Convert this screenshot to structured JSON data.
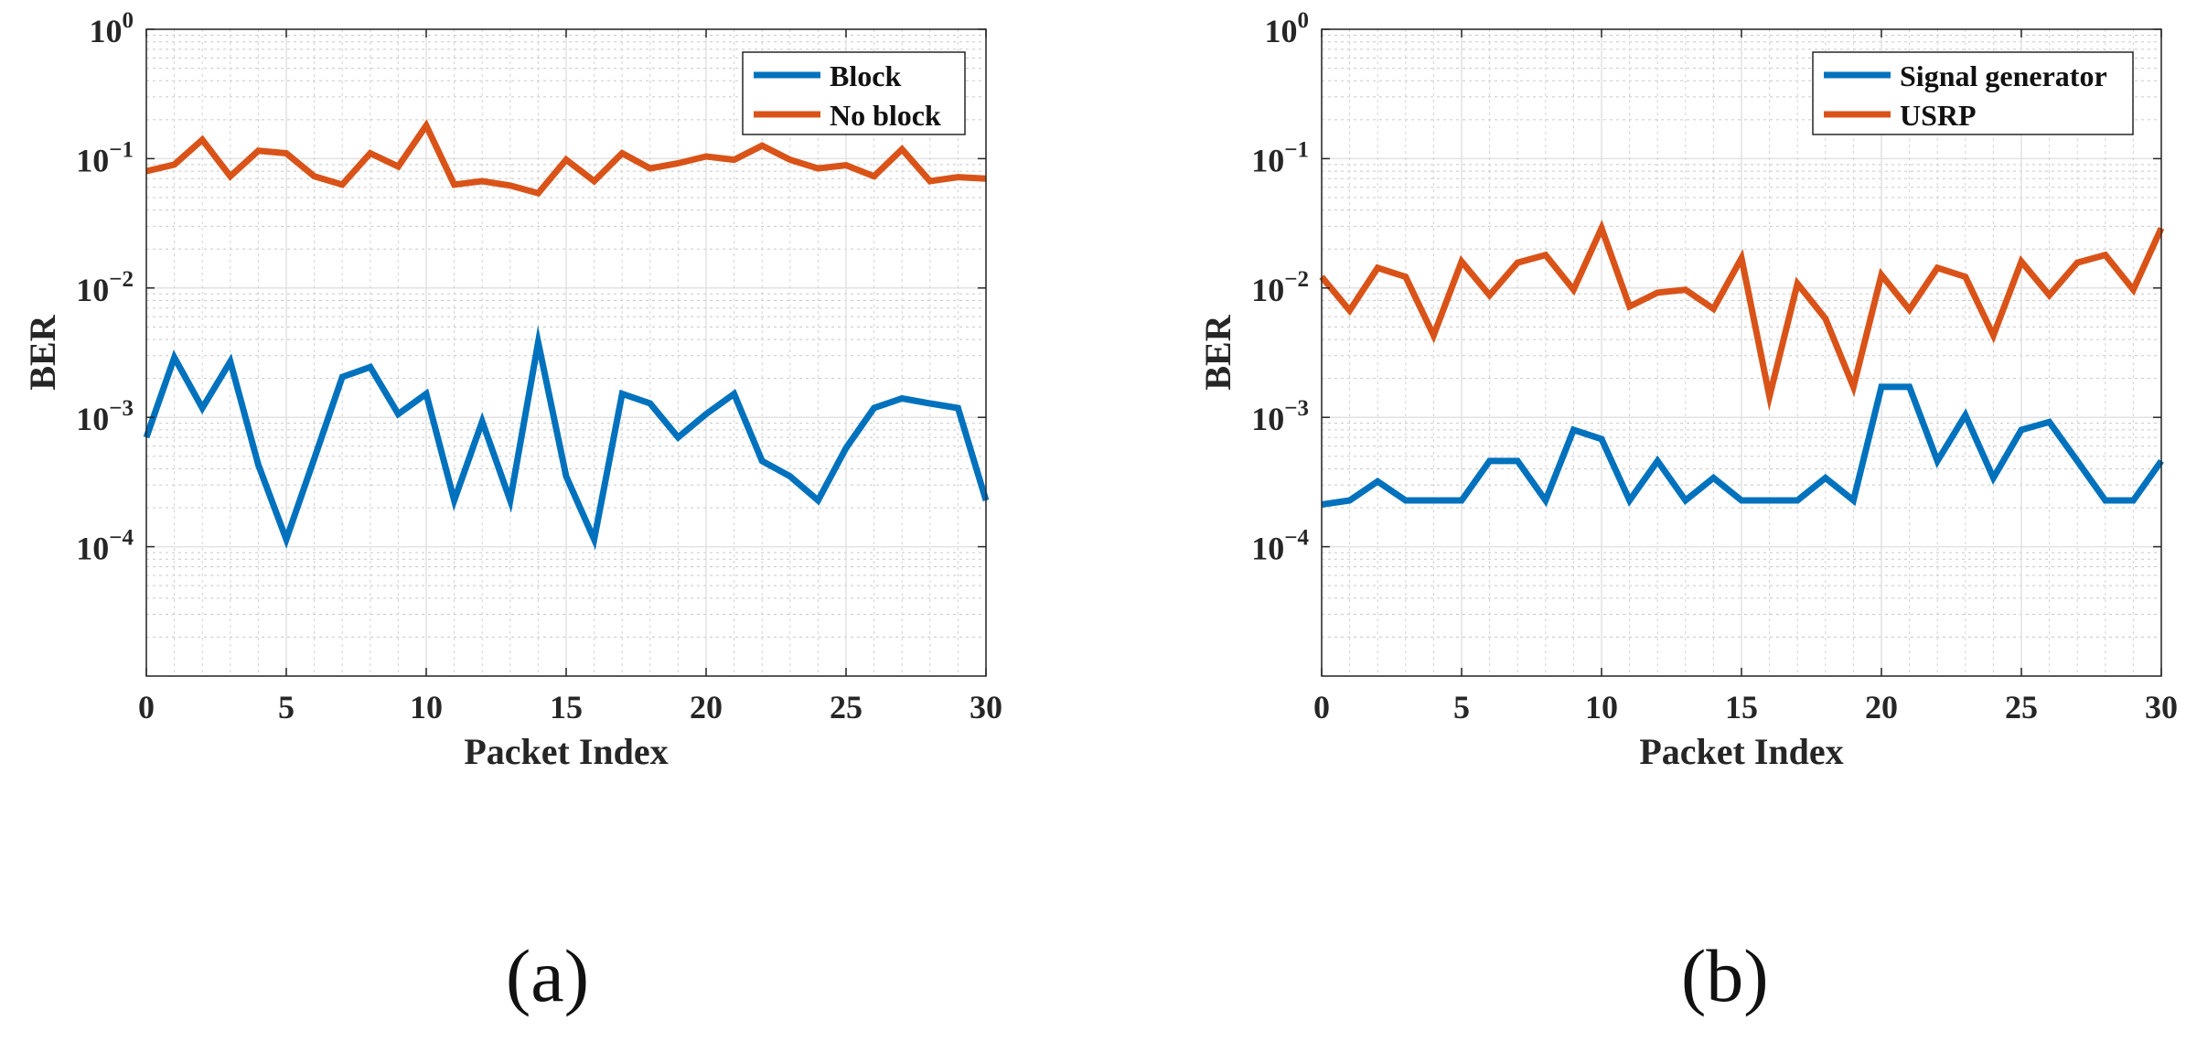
{
  "colors": {
    "series_1": "#0072BD",
    "series_2": "#D95319"
  },
  "chart_data": [
    {
      "type": "line",
      "panel_label": "(a)",
      "xlabel": "Packet Index",
      "ylabel": "BER",
      "xlim": [
        0,
        30
      ],
      "ylim": [
        1e-05,
        1
      ],
      "yscale": "log",
      "xticks": [
        "0",
        "5",
        "10",
        "15",
        "20",
        "25",
        "30"
      ],
      "yticks": [
        {
          "value": 1,
          "base": "10",
          "exp": "0"
        },
        {
          "value": 0.1,
          "base": "10",
          "exp": "−1"
        },
        {
          "value": 0.01,
          "base": "10",
          "exp": "−2"
        },
        {
          "value": 0.001,
          "base": "10",
          "exp": "−3"
        },
        {
          "value": 0.0001,
          "base": "10",
          "exp": "−4"
        }
      ],
      "grid": true,
      "legend_position": "top-right",
      "series": [
        {
          "name": "Block",
          "color": "#0072BD",
          "x": [
            0,
            1,
            2,
            3,
            4,
            5,
            6,
            7,
            8,
            9,
            10,
            11,
            12,
            13,
            14,
            15,
            16,
            17,
            18,
            19,
            20,
            21,
            22,
            23,
            24,
            25,
            26,
            27,
            28,
            29,
            30
          ],
          "values": [
            0.0007,
            0.0029,
            0.00118,
            0.0027,
            0.00043,
            0.000114,
            0.00048,
            0.00205,
            0.00245,
            0.00106,
            0.00152,
            0.000228,
            0.00093,
            0.000228,
            0.0038,
            0.00035,
            0.000114,
            0.00152,
            0.00128,
            0.0007,
            0.00106,
            0.00152,
            0.00046,
            0.00035,
            0.000228,
            0.00058,
            0.00118,
            0.0014,
            0.00128,
            0.00118,
            0.000228
          ]
        },
        {
          "name": "No block",
          "color": "#D95319",
          "x": [
            0,
            1,
            2,
            3,
            4,
            5,
            6,
            7,
            8,
            9,
            10,
            11,
            12,
            13,
            14,
            15,
            16,
            17,
            18,
            19,
            20,
            21,
            22,
            23,
            24,
            25,
            26,
            27,
            28,
            29,
            30
          ],
          "values": [
            0.08,
            0.09,
            0.14,
            0.073,
            0.115,
            0.11,
            0.073,
            0.063,
            0.11,
            0.087,
            0.18,
            0.063,
            0.067,
            0.062,
            0.054,
            0.098,
            0.067,
            0.11,
            0.084,
            0.092,
            0.104,
            0.098,
            0.126,
            0.098,
            0.084,
            0.089,
            0.073,
            0.118,
            0.067,
            0.072,
            0.07
          ]
        }
      ]
    },
    {
      "type": "line",
      "panel_label": "(b)",
      "xlabel": "Packet Index",
      "ylabel": "BER",
      "xlim": [
        0,
        30
      ],
      "ylim": [
        1e-05,
        1
      ],
      "yscale": "log",
      "xticks": [
        "0",
        "5",
        "10",
        "15",
        "20",
        "25",
        "30"
      ],
      "yticks": [
        {
          "value": 1,
          "base": "10",
          "exp": "0"
        },
        {
          "value": 0.1,
          "base": "10",
          "exp": "−1"
        },
        {
          "value": 0.01,
          "base": "10",
          "exp": "−2"
        },
        {
          "value": 0.001,
          "base": "10",
          "exp": "−3"
        },
        {
          "value": 0.0001,
          "base": "10",
          "exp": "−4"
        }
      ],
      "grid": true,
      "legend_position": "top-right",
      "series": [
        {
          "name": "Signal generator",
          "color": "#0072BD",
          "x": [
            0,
            1,
            2,
            3,
            4,
            5,
            6,
            7,
            8,
            9,
            10,
            11,
            12,
            13,
            14,
            15,
            16,
            17,
            18,
            19,
            20,
            21,
            22,
            23,
            24,
            25,
            26,
            27,
            28,
            29,
            30
          ],
          "values": [
            0.000212,
            0.000228,
            0.00032,
            0.000228,
            0.000228,
            0.000228,
            0.00046,
            0.00046,
            0.000228,
            0.0008,
            0.00068,
            0.000228,
            0.00046,
            0.000228,
            0.00034,
            0.000228,
            0.000228,
            0.000228,
            0.00034,
            0.000228,
            0.00172,
            0.00172,
            0.00046,
            0.00104,
            0.00034,
            0.0008,
            0.00092,
            0.00046,
            0.000228,
            0.000228,
            0.00046
          ]
        },
        {
          "name": "USRP",
          "color": "#D95319",
          "x": [
            0,
            1,
            2,
            3,
            4,
            5,
            6,
            7,
            8,
            9,
            10,
            11,
            12,
            13,
            14,
            15,
            16,
            17,
            18,
            19,
            20,
            21,
            22,
            23,
            24,
            25,
            26,
            27,
            28,
            29,
            30
          ],
          "values": [
            0.0122,
            0.0067,
            0.0143,
            0.0122,
            0.0043,
            0.016,
            0.0088,
            0.0157,
            0.018,
            0.0097,
            0.029,
            0.0072,
            0.0092,
            0.0097,
            0.0069,
            0.017,
            0.00145,
            0.0108,
            0.0058,
            0.00172,
            0.0126,
            0.0068,
            0.0143,
            0.0122,
            0.0043,
            0.016,
            0.0088,
            0.0157,
            0.018,
            0.0097,
            0.029
          ]
        }
      ]
    }
  ]
}
